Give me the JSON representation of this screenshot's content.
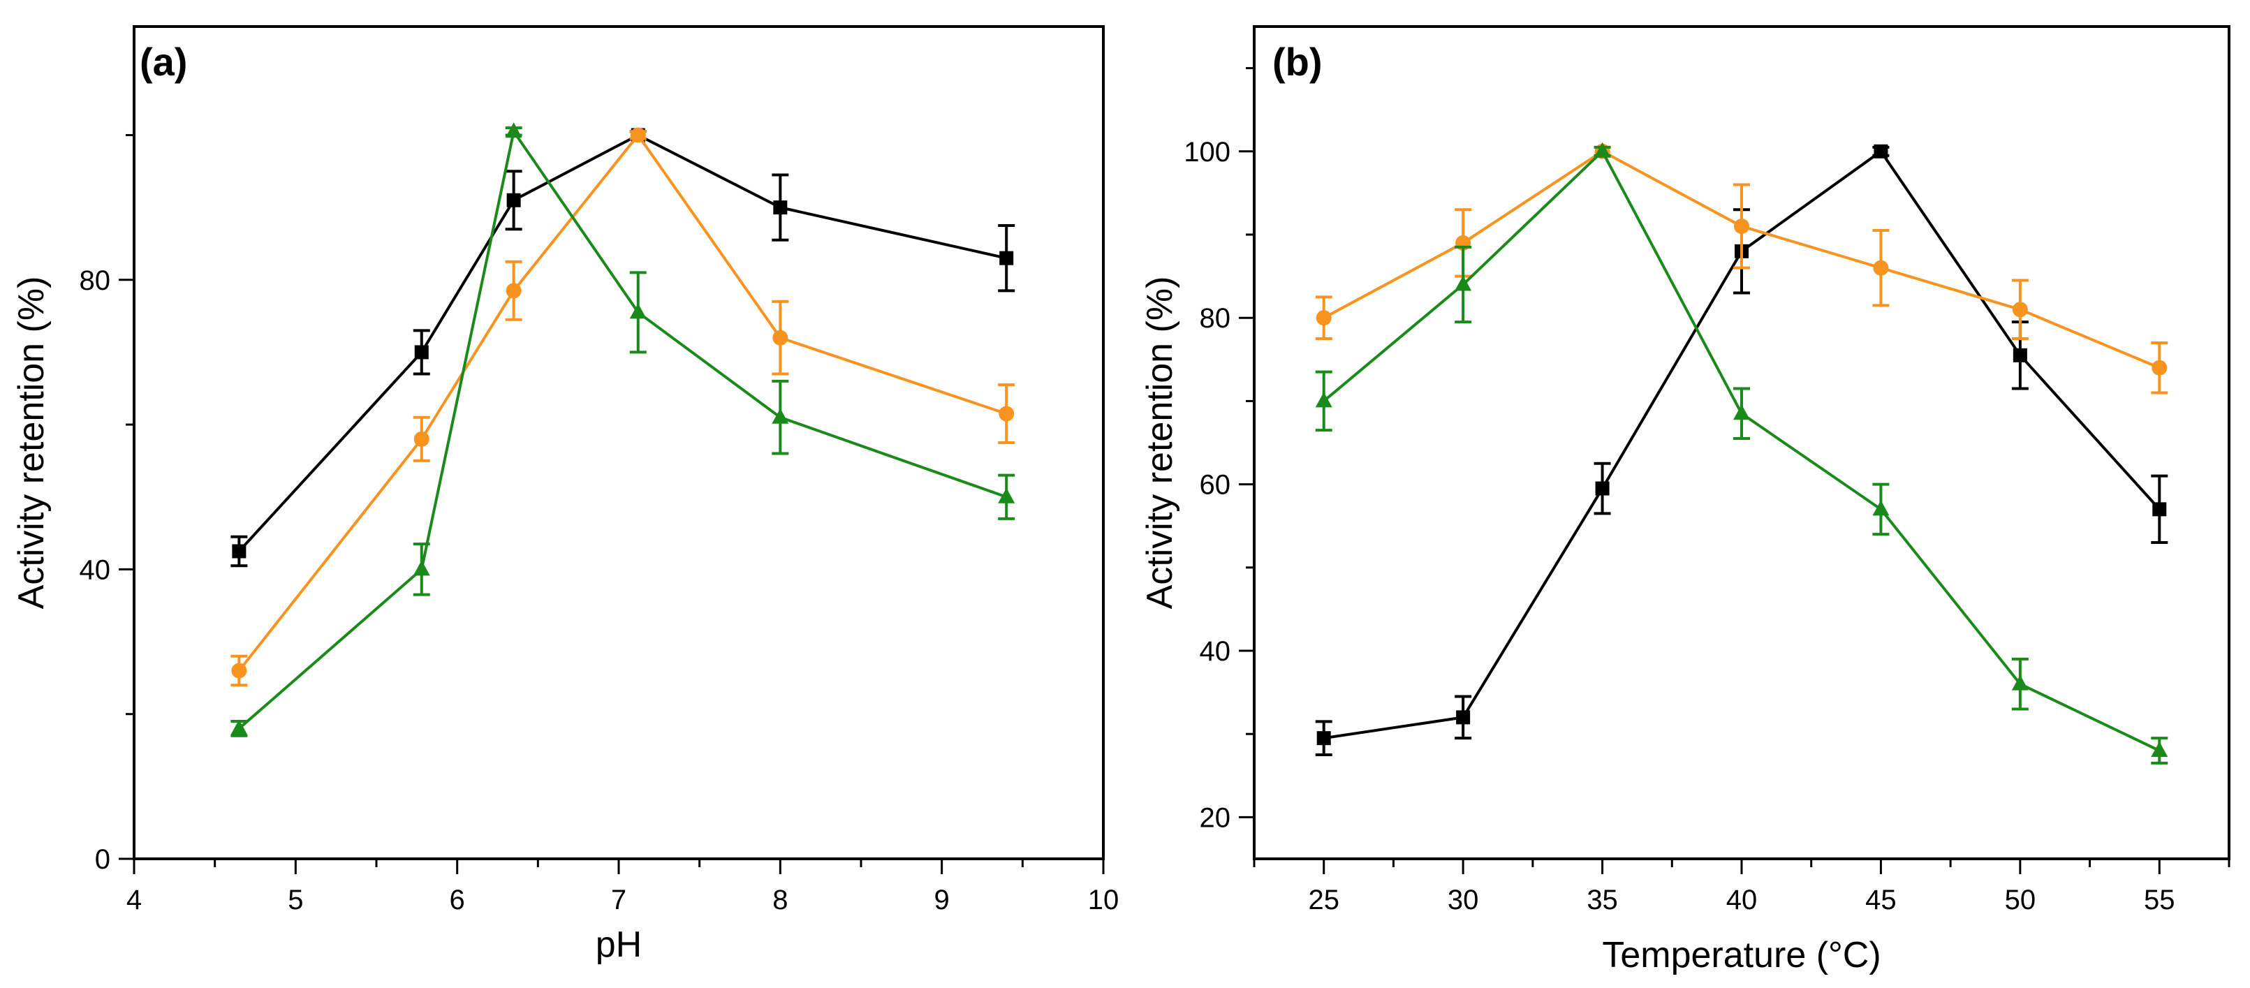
{
  "colors": {
    "series1": "#000000",
    "series2": "#f7931e",
    "series3": "#1a8a1a",
    "axis": "#000000"
  },
  "chart_data": [
    {
      "panel_label": "(a)",
      "type": "line",
      "xlabel": "pH",
      "ylabel": "Activity retention (%)",
      "xlim": [
        4,
        10
      ],
      "ylim": [
        0,
        115
      ],
      "xticks": [
        "4",
        "5",
        "6",
        "7",
        "8",
        "9",
        "10"
      ],
      "yticks": [
        "0",
        "40",
        "80"
      ],
      "series": [
        {
          "name": "series-black",
          "marker": "square",
          "color": "#000000",
          "x": [
            4.65,
            5.78,
            6.35,
            7.12,
            8.0,
            9.4
          ],
          "y": [
            42.5,
            70,
            91,
            100,
            90,
            83
          ],
          "err": [
            2,
            3,
            4,
            0.5,
            4.5,
            4.5
          ]
        },
        {
          "name": "series-orange",
          "marker": "circle",
          "color": "#f7931e",
          "x": [
            4.65,
            5.78,
            6.35,
            7.12,
            8.0,
            9.4
          ],
          "y": [
            26,
            58,
            78.5,
            100,
            72,
            61.5
          ],
          "err": [
            2,
            3,
            4,
            0.5,
            5,
            4
          ]
        },
        {
          "name": "series-green",
          "marker": "triangle",
          "color": "#1a8a1a",
          "x": [
            4.65,
            5.78,
            6.35,
            7.12,
            8.0,
            9.4
          ],
          "y": [
            18,
            40,
            100.5,
            75.5,
            61,
            50
          ],
          "err": [
            1,
            3.5,
            0.5,
            5.5,
            5,
            3
          ]
        }
      ]
    },
    {
      "panel_label": "(b)",
      "type": "line",
      "xlabel": "Temperature (°C)",
      "ylabel": "Activity retention (%)",
      "xlim": [
        22.5,
        57.5
      ],
      "ylim": [
        15,
        115
      ],
      "xticks": [
        "25",
        "30",
        "35",
        "40",
        "45",
        "50",
        "55"
      ],
      "yticks": [
        "20",
        "40",
        "60",
        "80",
        "100"
      ],
      "series": [
        {
          "name": "series-black",
          "marker": "square",
          "color": "#000000",
          "x": [
            25,
            30,
            35,
            40,
            45,
            50,
            55
          ],
          "y": [
            29.5,
            32,
            59.5,
            88,
            100,
            75.5,
            57
          ],
          "err": [
            2,
            2.5,
            3,
            5,
            0.5,
            4,
            4
          ]
        },
        {
          "name": "series-orange",
          "marker": "circle",
          "color": "#f7931e",
          "x": [
            25,
            30,
            35,
            40,
            45,
            50,
            55
          ],
          "y": [
            80,
            89,
            100,
            91,
            86,
            81,
            74
          ],
          "err": [
            2.5,
            4,
            0.5,
            5,
            4.5,
            3.5,
            3
          ]
        },
        {
          "name": "series-green",
          "marker": "triangle",
          "color": "#1a8a1a",
          "x": [
            25,
            30,
            35,
            40,
            45,
            50,
            55
          ],
          "y": [
            70,
            84,
            100,
            68.5,
            57,
            36,
            28
          ],
          "err": [
            3.5,
            4.5,
            0.5,
            3,
            3,
            3,
            1.5
          ]
        }
      ]
    }
  ]
}
